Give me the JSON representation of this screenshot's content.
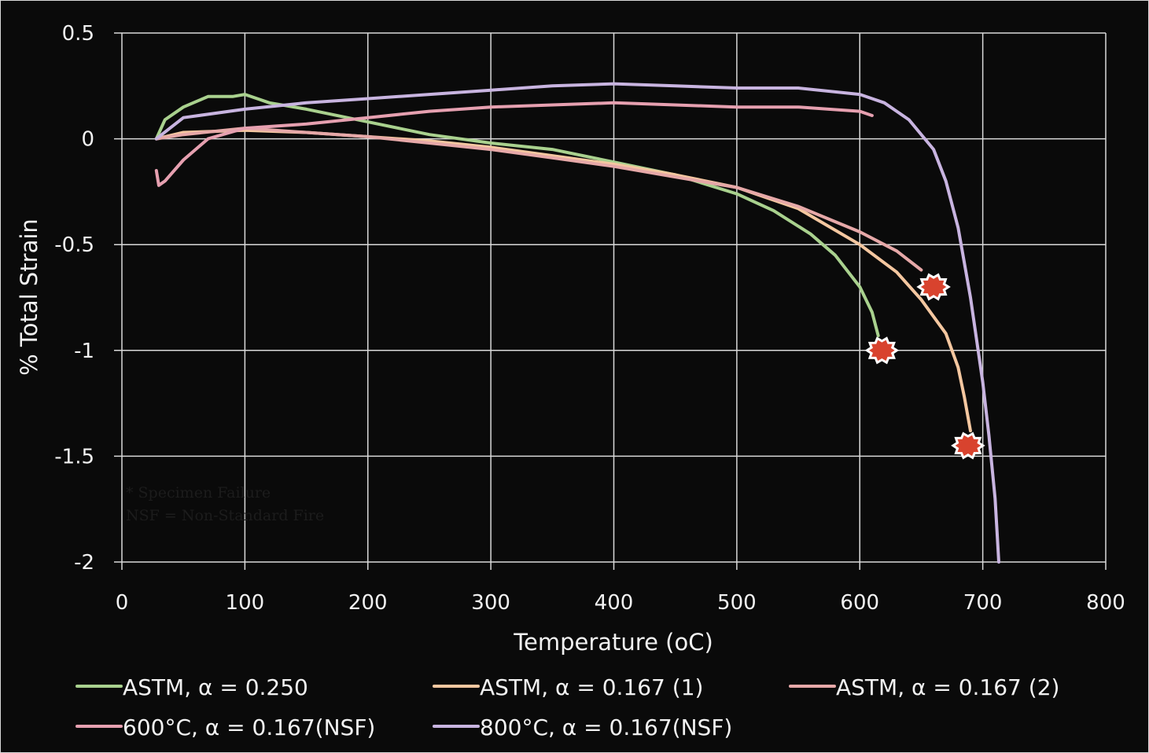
{
  "chart_data": {
    "type": "line",
    "xlabel": "Temperature (oC)",
    "ylabel": "% Total Strain",
    "xlim": [
      0,
      800
    ],
    "ylim": [
      -2,
      0.5
    ],
    "x_ticks": [
      "0",
      "100",
      "200",
      "300",
      "400",
      "500",
      "600",
      "700",
      "800"
    ],
    "y_ticks": [
      "0.5",
      "0",
      "-0.5",
      "-1",
      "-1.5",
      "-2"
    ],
    "grid": true,
    "legend_position": "bottom",
    "notes": [
      "* Specimen Failure",
      "NSF = Non-Standard Fire"
    ],
    "series": [
      {
        "name": "ASTM, α = 0.250",
        "color": "#a9d18e",
        "x": [
          28,
          35,
          50,
          70,
          90,
          100,
          120,
          150,
          200,
          250,
          300,
          350,
          400,
          450,
          500,
          530,
          560,
          580,
          600,
          610,
          615
        ],
        "y": [
          0.0,
          0.09,
          0.15,
          0.2,
          0.2,
          0.21,
          0.17,
          0.14,
          0.08,
          0.02,
          -0.02,
          -0.05,
          -0.11,
          -0.17,
          -0.26,
          -0.34,
          -0.45,
          -0.55,
          -0.7,
          -0.82,
          -0.93
        ],
        "failure": {
          "x": 618,
          "y": -1.0
        }
      },
      {
        "name": "ASTM,  α = 0.167 (1)",
        "color": "#f4c7a0",
        "x": [
          28,
          50,
          100,
          150,
          200,
          250,
          300,
          350,
          400,
          450,
          500,
          550,
          600,
          630,
          650,
          670,
          680,
          685,
          690
        ],
        "y": [
          0.0,
          0.03,
          0.04,
          0.03,
          0.01,
          -0.01,
          -0.04,
          -0.08,
          -0.12,
          -0.17,
          -0.23,
          -0.33,
          -0.5,
          -0.63,
          -0.76,
          -0.92,
          -1.08,
          -1.22,
          -1.38
        ],
        "failure": {
          "x": 688,
          "y": -1.45
        }
      },
      {
        "name": "ASTM, α = 0.167 (2)",
        "color": "#e6a8a8",
        "x": [
          28,
          50,
          100,
          150,
          200,
          250,
          300,
          350,
          400,
          450,
          500,
          550,
          600,
          630,
          650
        ],
        "y": [
          0.0,
          0.02,
          0.05,
          0.03,
          0.01,
          -0.02,
          -0.05,
          -0.09,
          -0.13,
          -0.18,
          -0.23,
          -0.32,
          -0.44,
          -0.53,
          -0.62
        ],
        "failure": {
          "x": 660,
          "y": -0.7
        }
      },
      {
        "name": "600°C, α = 0.167(NSF)",
        "color": "#e6a0b0",
        "x": [
          28,
          30,
          35,
          50,
          70,
          100,
          150,
          200,
          250,
          300,
          350,
          400,
          450,
          500,
          550,
          600,
          610
        ],
        "y": [
          -0.15,
          -0.22,
          -0.2,
          -0.1,
          0.0,
          0.05,
          0.07,
          0.1,
          0.13,
          0.15,
          0.16,
          0.17,
          0.16,
          0.15,
          0.15,
          0.13,
          0.11
        ]
      },
      {
        "name": "800°C, α = 0.167(NSF)",
        "color": "#c8b4e0",
        "x": [
          28,
          50,
          100,
          150,
          200,
          250,
          300,
          350,
          400,
          450,
          500,
          550,
          600,
          620,
          640,
          660,
          670,
          680,
          690,
          700,
          705,
          710,
          713
        ],
        "y": [
          0.0,
          0.1,
          0.14,
          0.17,
          0.19,
          0.21,
          0.23,
          0.25,
          0.26,
          0.25,
          0.24,
          0.24,
          0.21,
          0.17,
          0.09,
          -0.05,
          -0.2,
          -0.42,
          -0.75,
          -1.15,
          -1.4,
          -1.7,
          -2.0
        ]
      }
    ]
  }
}
